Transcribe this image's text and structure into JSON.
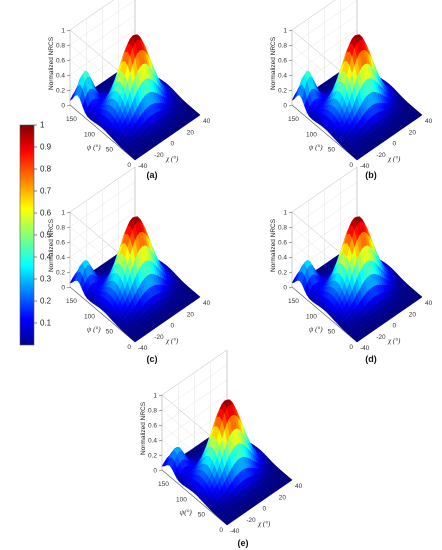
{
  "colorbar": {
    "ticks": [
      "1",
      "0.9",
      "0.8",
      "0.7",
      "0.6",
      "0.5",
      "0.4",
      "0.3",
      "0.2",
      "0.1"
    ],
    "colormap": "jet",
    "range": [
      0,
      1
    ]
  },
  "chart_data": [
    {
      "type": "surface",
      "panel_label": "(a)",
      "zlabel": "Normalized NRCS",
      "ylabel": "ψ (°)",
      "xlabel": "χ (°)",
      "z_ticks": [
        "0",
        "0.2",
        "0.4",
        "0.6",
        "0.8",
        "1"
      ],
      "psi_ticks": [
        "150",
        "100",
        "50",
        "0"
      ],
      "chi_ticks": [
        "-40",
        "-20",
        "0",
        "20",
        "40"
      ],
      "zlim": [
        0,
        1
      ],
      "peak": {
        "psi": 90,
        "chi": 0,
        "z": 1.0
      },
      "secondary_lobe_z": 0.4,
      "colormap": "jet"
    },
    {
      "type": "surface",
      "panel_label": "(b)",
      "zlabel": "Normalized NRCS",
      "ylabel": "ψ (°)",
      "xlabel": "χ (°)",
      "z_ticks": [
        "0",
        "0.2",
        "0.4",
        "0.6",
        "0.8",
        "1"
      ],
      "psi_ticks": [
        "150",
        "100",
        "50",
        "0"
      ],
      "chi_ticks": [
        "-40",
        "-20",
        "0",
        "20",
        "40"
      ],
      "zlim": [
        0,
        1
      ],
      "peak": {
        "psi": 90,
        "chi": 0,
        "z": 1.0
      },
      "secondary_lobe_z": 0.4,
      "colormap": "jet"
    },
    {
      "type": "surface",
      "panel_label": "(c)",
      "zlabel": "Normalized NRCS",
      "ylabel": "ψ (°)",
      "xlabel": "χ (°)",
      "z_ticks": [
        "0",
        "0.2",
        "0.4",
        "0.6",
        "0.8",
        "1"
      ],
      "psi_ticks": [
        "150",
        "100",
        "50",
        "0"
      ],
      "chi_ticks": [
        "-40",
        "-20",
        "0",
        "20",
        "40"
      ],
      "zlim": [
        0,
        1
      ],
      "peak": {
        "psi": 90,
        "chi": 0,
        "z": 1.0
      },
      "secondary_lobe_z": 0.3,
      "colormap": "jet"
    },
    {
      "type": "surface",
      "panel_label": "(d)",
      "zlabel": "Normalized NRCS",
      "ylabel": "ψ (°)",
      "xlabel": "χ (°)",
      "z_ticks": [
        "0",
        "0.2",
        "0.4",
        "0.6",
        "0.8",
        "1"
      ],
      "psi_ticks": [
        "150",
        "100",
        "50",
        "0"
      ],
      "chi_ticks": [
        "-40",
        "-20",
        "0",
        "20",
        "40"
      ],
      "zlim": [
        0,
        1
      ],
      "peak": {
        "psi": 90,
        "chi": 0,
        "z": 1.0
      },
      "secondary_lobe_z": 0.3,
      "colormap": "jet"
    },
    {
      "type": "surface",
      "panel_label": "(e)",
      "zlabel": "Normalized NRCS",
      "ylabel": "ψ(°)",
      "xlabel": "χ (°)",
      "z_ticks": [
        "0",
        "0.2",
        "0.4",
        "0.6",
        "0.8",
        "1"
      ],
      "psi_ticks": [
        "150",
        "100",
        "50",
        "0"
      ],
      "chi_ticks": [
        "-40",
        "-20",
        "0",
        "20",
        "40"
      ],
      "zlim": [
        0,
        1
      ],
      "peak": {
        "psi": 90,
        "chi": 0,
        "z": 1.0
      },
      "secondary_lobe_z": 0.25,
      "colormap": "jet"
    }
  ]
}
